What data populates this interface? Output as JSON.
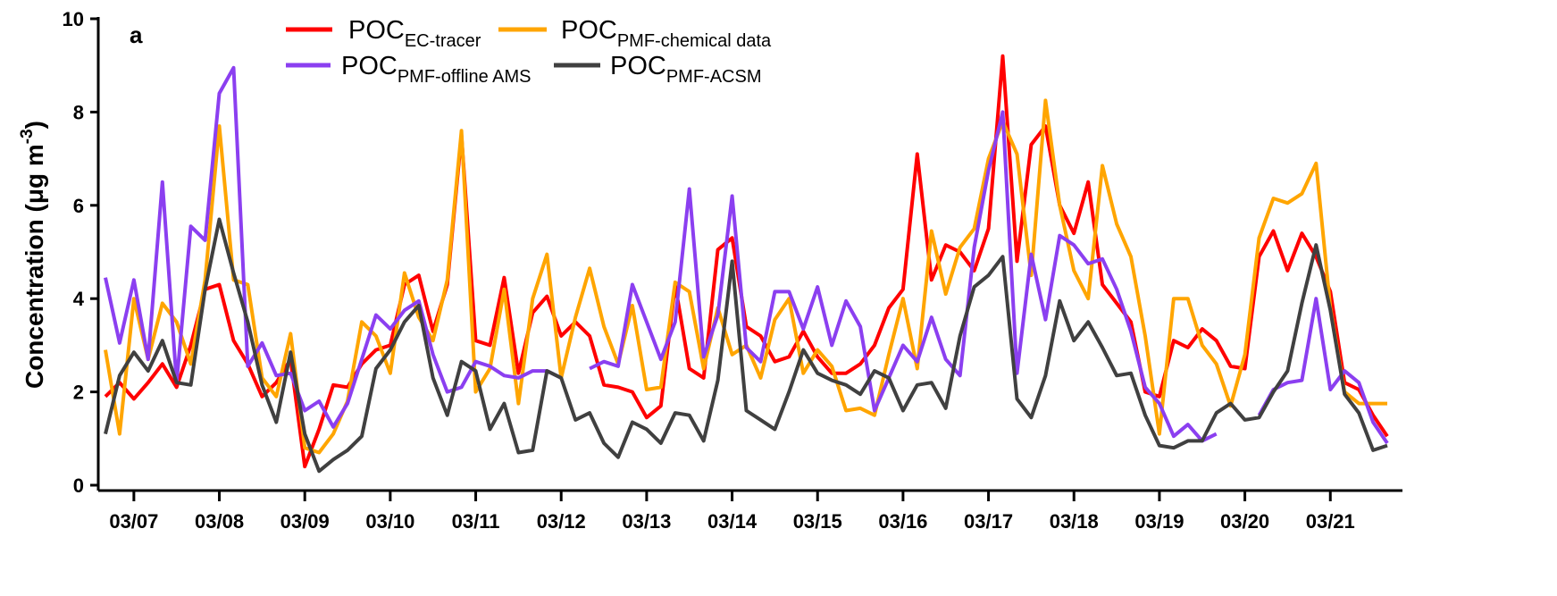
{
  "chart_data": {
    "type": "line",
    "panel_label": "a",
    "ylabel": "Concentration (μg m",
    "ylabel_superscript": "-3",
    "ylabel_end": ")",
    "x": [
      -8,
      -4,
      0,
      4,
      8,
      12,
      16,
      20,
      24,
      28,
      32,
      36,
      40,
      44,
      48,
      52,
      56,
      60,
      64,
      68,
      72,
      76,
      80,
      84,
      88,
      92,
      96,
      100,
      104,
      108,
      112,
      116,
      120,
      124,
      128,
      132,
      136,
      140,
      144,
      148,
      152,
      156,
      160,
      164,
      168,
      172,
      176,
      180,
      184,
      188,
      192,
      196,
      200,
      204,
      208,
      212,
      216,
      220,
      224,
      228,
      232,
      236,
      240,
      244,
      248,
      252,
      256,
      260,
      264,
      268,
      272,
      276,
      280,
      284,
      288,
      292,
      296,
      300,
      304,
      308,
      312,
      316,
      320,
      324,
      328,
      332,
      336,
      340,
      344,
      348,
      352
    ],
    "xlim": [
      -10,
      355
    ],
    "xticks": [
      {
        "value": 0,
        "label": "03/07"
      },
      {
        "value": 24,
        "label": "03/08"
      },
      {
        "value": 48,
        "label": "03/09"
      },
      {
        "value": 72,
        "label": "03/10"
      },
      {
        "value": 96,
        "label": "03/11"
      },
      {
        "value": 120,
        "label": "03/12"
      },
      {
        "value": 144,
        "label": "03/13"
      },
      {
        "value": 168,
        "label": "03/14"
      },
      {
        "value": 192,
        "label": "03/15"
      },
      {
        "value": 216,
        "label": "03/16"
      },
      {
        "value": 240,
        "label": "03/17"
      },
      {
        "value": 264,
        "label": "03/18"
      },
      {
        "value": 288,
        "label": "03/19"
      },
      {
        "value": 312,
        "label": "03/20"
      },
      {
        "value": 336,
        "label": "03/21"
      }
    ],
    "ylim": [
      0,
      10
    ],
    "yticks": [
      0,
      2,
      4,
      6,
      8,
      10
    ],
    "series": [
      {
        "name": "POC",
        "subscript": "EC-tracer",
        "color": "#ff0000",
        "values": [
          1.9,
          2.2,
          1.85,
          2.2,
          2.6,
          2.1,
          3.0,
          4.2,
          4.3,
          3.1,
          2.6,
          1.9,
          2.2,
          2.7,
          0.4,
          1.2,
          2.15,
          2.1,
          2.6,
          2.9,
          3.0,
          4.3,
          4.5,
          3.3,
          4.3,
          7.5,
          3.1,
          3.0,
          4.45,
          2.4,
          3.7,
          4.05,
          3.2,
          3.5,
          3.2,
          2.15,
          2.1,
          2.0,
          1.45,
          1.7,
          4.3,
          2.5,
          2.3,
          5.05,
          5.3,
          3.4,
          3.2,
          2.65,
          2.75,
          3.3,
          2.75,
          2.4,
          2.4,
          2.6,
          3.0,
          3.8,
          4.2,
          7.1,
          4.4,
          5.15,
          5.0,
          4.6,
          5.5,
          9.2,
          4.8,
          7.3,
          7.7,
          6.0,
          5.4,
          6.5,
          4.3,
          3.9,
          3.5,
          2.0,
          1.9,
          3.1,
          2.95,
          3.35,
          3.1,
          2.55,
          2.5,
          4.9,
          5.45,
          4.6,
          5.4,
          4.9,
          4.15,
          2.2,
          2.05,
          1.5,
          1.05
        ]
      },
      {
        "name": "POC",
        "subscript": "PMF-chemical data",
        "color": "#ffa500",
        "values": [
          2.9,
          1.1,
          4.0,
          2.7,
          3.9,
          3.5,
          2.6,
          4.4,
          7.7,
          4.4,
          4.3,
          2.3,
          1.9,
          3.25,
          0.8,
          0.7,
          1.1,
          1.8,
          3.5,
          3.2,
          2.4,
          4.55,
          3.6,
          3.1,
          4.4,
          7.6,
          2.0,
          2.5,
          4.2,
          1.75,
          4.0,
          4.95,
          2.3,
          3.6,
          4.65,
          3.4,
          2.6,
          3.85,
          2.05,
          2.1,
          4.35,
          4.15,
          2.5,
          3.8,
          2.8,
          3.0,
          2.3,
          3.55,
          4.0,
          2.4,
          2.9,
          2.55,
          1.6,
          1.65,
          1.5,
          2.8,
          4.0,
          2.5,
          5.45,
          4.1,
          5.1,
          5.5,
          7.0,
          7.8,
          7.1,
          4.5,
          8.25,
          6.0,
          4.6,
          4.0,
          6.85,
          5.6,
          4.9,
          3.2,
          1.1,
          4.0,
          4.0,
          3.0,
          2.6,
          1.7,
          2.8,
          5.3,
          6.15,
          6.05,
          6.25,
          6.9,
          3.8,
          2.0,
          1.75,
          1.75,
          1.75
        ]
      },
      {
        "name": "POC",
        "subscript": "PMF-offline AMS",
        "color": "#8b3ff0",
        "values": [
          4.45,
          3.05,
          4.4,
          2.7,
          6.5,
          2.2,
          5.55,
          5.25,
          8.4,
          8.95,
          2.55,
          3.05,
          2.35,
          2.4,
          1.6,
          1.8,
          1.25,
          1.75,
          2.7,
          3.65,
          3.35,
          3.75,
          3.95,
          2.8,
          2.0,
          2.1,
          2.65,
          2.55,
          2.35,
          2.3,
          2.45,
          2.45,
          2.3,
          null,
          2.5,
          2.65,
          2.55,
          4.3,
          3.5,
          2.7,
          3.5,
          6.35,
          2.75,
          3.65,
          6.2,
          2.95,
          2.65,
          4.15,
          4.15,
          3.35,
          4.25,
          3.0,
          3.95,
          3.4,
          1.6,
          2.3,
          3.0,
          2.65,
          3.6,
          2.7,
          2.35,
          5.1,
          6.75,
          8.0,
          2.4,
          4.95,
          3.55,
          5.35,
          5.15,
          4.75,
          4.85,
          4.2,
          3.3,
          2.1,
          1.75,
          1.05,
          1.3,
          0.95,
          1.1,
          null,
          null,
          1.5,
          2.05,
          2.2,
          2.25,
          4.0,
          2.05,
          2.45,
          2.2,
          1.35,
          0.9
        ]
      },
      {
        "name": "POC",
        "subscript": "PMF-ACSM",
        "color": "#404040",
        "values": [
          1.1,
          2.35,
          2.85,
          2.45,
          3.1,
          2.2,
          2.15,
          4.2,
          5.7,
          4.55,
          3.5,
          2.15,
          1.35,
          2.85,
          1.1,
          0.3,
          0.55,
          0.75,
          1.05,
          2.5,
          2.9,
          3.5,
          3.85,
          2.3,
          1.5,
          2.65,
          2.45,
          1.2,
          1.75,
          0.7,
          0.75,
          2.45,
          2.3,
          1.4,
          1.55,
          0.9,
          0.6,
          1.35,
          1.2,
          0.9,
          1.55,
          1.5,
          0.95,
          2.25,
          4.8,
          1.6,
          1.4,
          1.2,
          2.0,
          2.9,
          2.4,
          2.25,
          2.15,
          1.95,
          2.45,
          2.3,
          1.6,
          2.15,
          2.2,
          1.65,
          3.2,
          4.25,
          4.5,
          4.9,
          1.85,
          1.45,
          2.35,
          3.95,
          3.1,
          3.5,
          2.95,
          2.35,
          2.4,
          1.5,
          0.85,
          0.8,
          0.95,
          0.95,
          1.55,
          1.75,
          1.4,
          1.45,
          2.0,
          2.45,
          3.9,
          5.15,
          3.75,
          1.95,
          1.55,
          0.75,
          0.85
        ]
      }
    ]
  }
}
